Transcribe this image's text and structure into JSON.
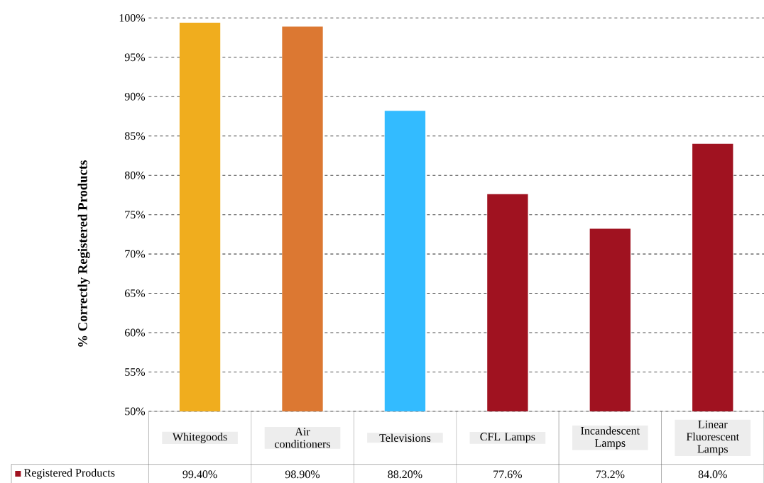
{
  "chart_data": {
    "type": "bar",
    "ylabel": "% Correctly Registered Products",
    "categories": [
      "Whitegoods",
      "Air conditioners",
      "Televisions",
      "CFL Lamps",
      "Incandescent Lamps",
      "Linear Fluorescent Lamps"
    ],
    "series": [
      {
        "name": "Registered Products",
        "color": "#a01220",
        "colors": [
          "#f0ad1e",
          "#dc7832",
          "#33bbff",
          "#a01220",
          "#a01220",
          "#a01220"
        ],
        "values": [
          99.4,
          98.9,
          88.2,
          77.6,
          73.2,
          84.0
        ],
        "value_labels": [
          "99.40%",
          "98.90%",
          "88.20%",
          "77.6%",
          "73.2%",
          "84.0%"
        ]
      }
    ],
    "ylim": [
      50,
      100
    ],
    "yticks": [
      {
        "value": 50,
        "label": "50%"
      },
      {
        "value": 55,
        "label": "55%"
      },
      {
        "value": 60,
        "label": "60%"
      },
      {
        "value": 65,
        "label": "65%"
      },
      {
        "value": 70,
        "label": "70%"
      },
      {
        "value": 75,
        "label": "75%"
      },
      {
        "value": 80,
        "label": "80%"
      },
      {
        "value": 85,
        "label": "85%"
      },
      {
        "value": 90,
        "label": "90%"
      },
      {
        "value": 95,
        "label": "95%"
      },
      {
        "value": 100,
        "label": "100%"
      }
    ],
    "grid": "y",
    "legend": "bottom"
  }
}
